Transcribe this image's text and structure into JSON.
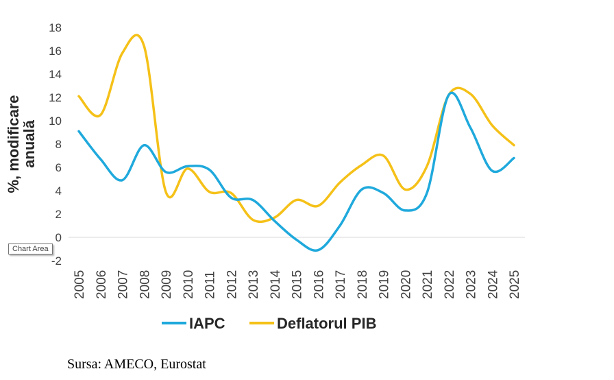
{
  "chart_data": {
    "type": "line",
    "ylabel": [
      "%, modificare",
      "anuală"
    ],
    "xlabel": "",
    "ylim": [
      -2,
      18
    ],
    "yticks": [
      -2,
      0,
      2,
      4,
      6,
      8,
      10,
      12,
      14,
      16,
      18
    ],
    "grid": false,
    "legend_position": "bottom",
    "categories": [
      "2005",
      "2006",
      "2007",
      "2008",
      "2009",
      "2010",
      "2011",
      "2012",
      "2013",
      "2014",
      "2015",
      "2016",
      "2017",
      "2018",
      "2019",
      "2020",
      "2021",
      "2022",
      "2023",
      "2024",
      "2025"
    ],
    "series": [
      {
        "name": "IAPC",
        "color": "#1fa9dc",
        "values": [
          9.1,
          6.7,
          4.9,
          7.9,
          5.6,
          6.1,
          5.8,
          3.4,
          3.2,
          1.4,
          -0.2,
          -1.1,
          1.0,
          4.1,
          3.8,
          2.3,
          3.8,
          12.2,
          9.4,
          5.7,
          6.8
        ]
      },
      {
        "name": "Deflatorul PIB",
        "color": "#f5c118",
        "values": [
          12.1,
          10.5,
          15.8,
          16.4,
          3.9,
          5.9,
          3.9,
          3.8,
          1.5,
          1.7,
          3.2,
          2.7,
          4.7,
          6.2,
          7.0,
          4.1,
          6.1,
          12.2,
          12.3,
          9.6,
          7.9
        ]
      }
    ]
  },
  "tooltip": "Chart Area",
  "source": "Sursa: AMECO, Eurostat"
}
